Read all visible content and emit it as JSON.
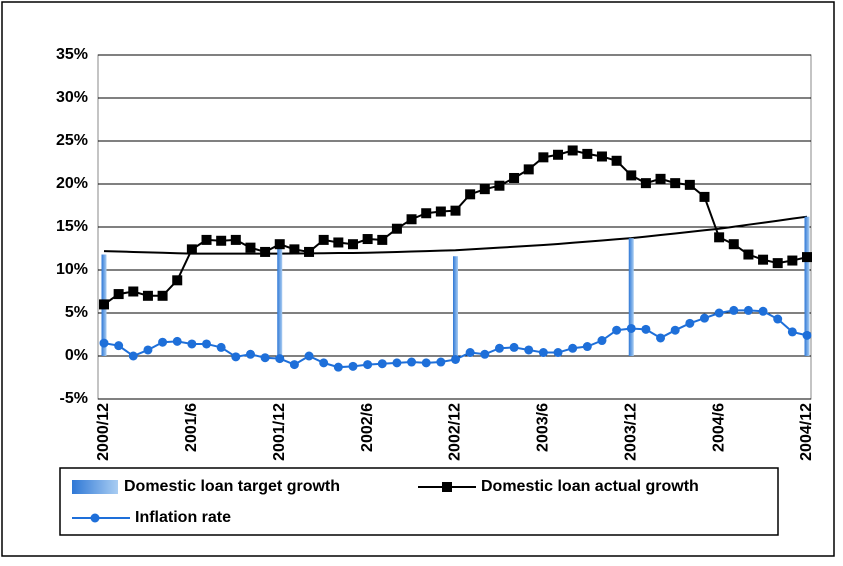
{
  "chart_data": {
    "type": "combo",
    "categories": [
      "2000/12",
      null,
      null,
      null,
      null,
      null,
      "2001/6",
      null,
      null,
      null,
      null,
      null,
      "2001/12",
      null,
      null,
      null,
      null,
      null,
      "2002/6",
      null,
      null,
      null,
      null,
      null,
      "2002/12",
      null,
      null,
      null,
      null,
      null,
      "2003/6",
      null,
      null,
      null,
      null,
      null,
      "2003/12",
      null,
      null,
      null,
      null,
      null,
      "2004/6",
      null,
      null,
      null,
      null,
      null,
      "2004/12"
    ],
    "ylim": [
      -5,
      35
    ],
    "yticks": [
      {
        "value": -5,
        "label": "-5%"
      },
      {
        "value": 0,
        "label": "0%"
      },
      {
        "value": 5,
        "label": "5%"
      },
      {
        "value": 10,
        "label": "10%"
      },
      {
        "value": 15,
        "label": "15%"
      },
      {
        "value": 20,
        "label": "20%"
      },
      {
        "value": 25,
        "label": "25%"
      },
      {
        "value": 30,
        "label": "30%"
      },
      {
        "value": 35,
        "label": "35%"
      }
    ],
    "grid": true,
    "series": [
      {
        "name": "Domestic loan target growth",
        "type": "bar",
        "color": "#4a8fdc",
        "values": [
          11.8,
          null,
          null,
          null,
          null,
          null,
          null,
          null,
          null,
          null,
          null,
          null,
          12.5,
          null,
          null,
          null,
          null,
          null,
          null,
          null,
          null,
          null,
          null,
          null,
          11.6,
          null,
          null,
          null,
          null,
          null,
          null,
          null,
          null,
          null,
          null,
          null,
          13.7,
          null,
          null,
          null,
          null,
          null,
          null,
          null,
          null,
          null,
          null,
          null,
          16.2
        ]
      },
      {
        "name": "Domestic loan actual growth",
        "type": "line",
        "marker": "square",
        "color": "#000000",
        "values": [
          6.0,
          7.2,
          7.5,
          7.0,
          7.0,
          8.8,
          12.4,
          13.5,
          13.4,
          13.5,
          12.6,
          12.1,
          13.0,
          12.4,
          12.1,
          13.5,
          13.2,
          13.0,
          13.6,
          13.5,
          14.8,
          15.9,
          16.6,
          16.8,
          16.9,
          18.8,
          19.4,
          19.8,
          20.7,
          21.7,
          23.1,
          23.4,
          23.9,
          23.5,
          23.2,
          22.7,
          21.0,
          20.1,
          20.6,
          20.1,
          19.9,
          18.5,
          13.8,
          13.0,
          11.8,
          11.2,
          10.8,
          11.1,
          11.5
        ]
      },
      {
        "name": "Inflation rate",
        "type": "line",
        "marker": "circle",
        "color": "#1e6fd9",
        "values": [
          1.5,
          1.2,
          0.0,
          0.7,
          1.6,
          1.7,
          1.4,
          1.4,
          1.0,
          -0.1,
          0.2,
          -0.2,
          -0.3,
          -1.0,
          0.0,
          -0.8,
          -1.3,
          -1.2,
          -1.0,
          -0.9,
          -0.8,
          -0.7,
          -0.8,
          -0.7,
          -0.4,
          0.4,
          0.2,
          0.9,
          1.0,
          0.7,
          0.4,
          0.4,
          0.9,
          1.1,
          1.8,
          3.0,
          3.2,
          3.1,
          2.1,
          3.0,
          3.8,
          4.4,
          5.0,
          5.3,
          5.3,
          5.2,
          4.3,
          2.8,
          2.4
        ]
      }
    ],
    "trendline": {
      "color": "#000000",
      "values": [
        12.2,
        12.15,
        12.1,
        12.05,
        12.0,
        11.95,
        11.9,
        11.9,
        11.9,
        11.9,
        11.9,
        11.9,
        11.9,
        11.92,
        11.93,
        11.95,
        11.97,
        11.98,
        12.0,
        12.05,
        12.1,
        12.15,
        12.2,
        12.25,
        12.3,
        12.4,
        12.5,
        12.6,
        12.7,
        12.8,
        12.9,
        13.03,
        13.17,
        13.3,
        13.43,
        13.57,
        13.7,
        13.88,
        14.07,
        14.25,
        14.43,
        14.62,
        14.8,
        15.03,
        15.27,
        15.5,
        15.73,
        15.97,
        16.2
      ]
    }
  }
}
